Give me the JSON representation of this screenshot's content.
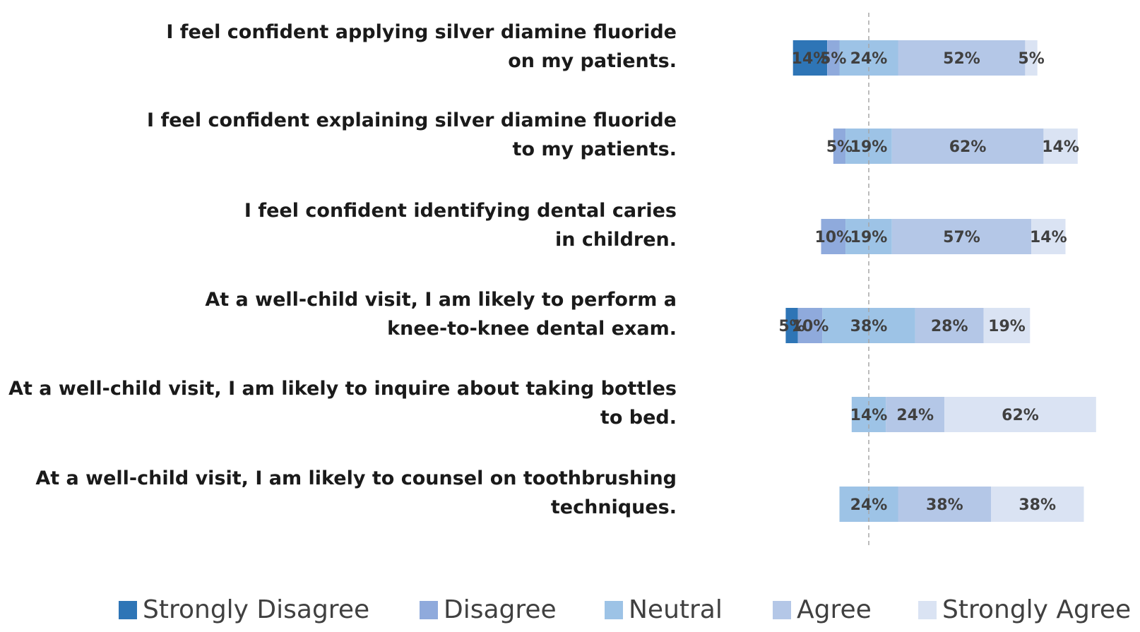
{
  "chart_data": {
    "type": "bar",
    "stacked": true,
    "orientation": "horizontal",
    "diverging": true,
    "legend_position": "bottom",
    "categories": [
      [
        "I feel confident applying silver diamine fluoride",
        "on my patients."
      ],
      [
        "I feel confident explaining silver diamine fluoride",
        "to my patients."
      ],
      [
        "I feel confident identifying dental caries",
        "in children."
      ],
      [
        "At a well-child visit, I am likely to perform a",
        "knee-to-knee dental exam."
      ],
      [
        "At a well-child visit, I am likely to inquire about taking bottles",
        "to bed."
      ],
      [
        "At a well-child visit, I am likely to counsel on toothbrushing",
        "techniques."
      ]
    ],
    "series": [
      {
        "name": "Strongly Disagree",
        "color": "#2e75b6",
        "values": [
          14,
          0,
          0,
          5,
          0,
          0
        ],
        "labels": [
          "14%",
          "",
          "",
          "5%",
          "",
          ""
        ]
      },
      {
        "name": "Disagree",
        "color": "#8faadc",
        "values": [
          5,
          5,
          10,
          10,
          0,
          0
        ],
        "labels": [
          "5%",
          "5%",
          "10%",
          "10%",
          "",
          ""
        ]
      },
      {
        "name": "Neutral",
        "color": "#9dc3e6",
        "values": [
          24,
          19,
          19,
          38,
          14,
          24
        ],
        "labels": [
          "24%",
          "19%",
          "19%",
          "38%",
          "14%",
          "24%"
        ]
      },
      {
        "name": "Agree",
        "color": "#b4c7e7",
        "values": [
          52,
          62,
          57,
          28,
          24,
          38
        ],
        "labels": [
          "52%",
          "62%",
          "57%",
          "28%",
          "24%",
          "38%"
        ]
      },
      {
        "name": "Strongly Agree",
        "color": "#dae3f3",
        "values": [
          5,
          14,
          14,
          19,
          62,
          38
        ],
        "labels": [
          "5%",
          "14%",
          "14%",
          "19%",
          "62%",
          "38%"
        ]
      }
    ]
  }
}
